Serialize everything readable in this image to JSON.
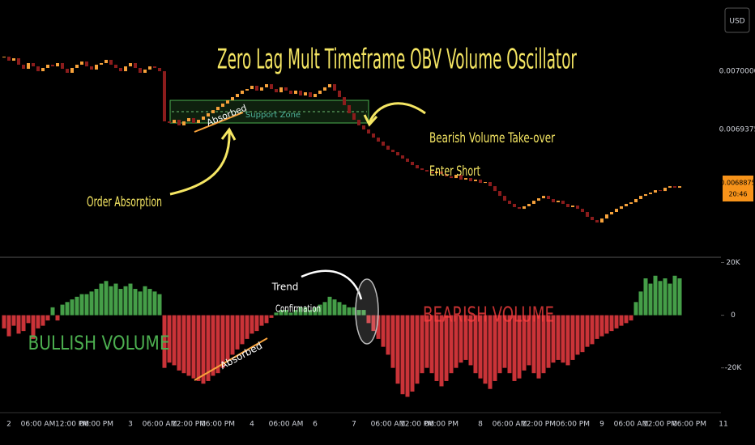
{
  "chart_data": [
    {
      "type": "candlestick",
      "title": "Zero Lag Mult Timeframe OBV Volume Oscillator",
      "currency": "USD",
      "price_label": "0.0068875",
      "time_label": "20:46",
      "annotations": {
        "order_absorption": "Order Absorption",
        "takeover": "Bearish Volume Take-over",
        "enter_short": "Enter Short",
        "absorbed": "Absorbed",
        "support_zone": "Support Zone"
      },
      "up_color": "#f7a23b",
      "down_color": "#8b1c1c",
      "grid": false,
      "ylim": [
        0.006803,
        0.0070764
      ],
      "yticks": [
        {
          "value": 0.007,
          "label": "0.0070000"
        },
        {
          "value": 0.0069375,
          "label": "0.0069375"
        }
      ],
      "values": [
        0.0070156,
        0.0070113,
        0.0070139,
        0.007007,
        0.0070026,
        0.0070087,
        0.0070052,
        0.007,
        0.0070035,
        0.007007,
        0.0070052,
        0.0070087,
        0.0070026,
        0.0069983,
        0.0070035,
        0.007007,
        0.0070104,
        0.0070052,
        0.0070018,
        0.007007,
        0.0070087,
        0.0070122,
        0.007007,
        0.0070035,
        0.007,
        0.0070052,
        0.0070087,
        0.0070035,
        0.0069983,
        0.0070018,
        0.0070052,
        0.0070035,
        0.007,
        0.0069462,
        0.0069445,
        0.0069479,
        0.0069419,
        0.0069462,
        0.0069497,
        0.0069445,
        0.0069479,
        0.0069514,
        0.0069549,
        0.0069583,
        0.0069618,
        0.0069653,
        0.0069688,
        0.0069722,
        0.0069757,
        0.0069792,
        0.0069809,
        0.0069844,
        0.0069792,
        0.0069827,
        0.0069861,
        0.0069809,
        0.0069774,
        0.0069827,
        0.0069792,
        0.0069757,
        0.0069792,
        0.006974,
        0.0069774,
        0.0069722,
        0.0069757,
        0.0069792,
        0.0069827,
        0.0069861,
        0.0069792,
        0.0069722,
        0.0069636,
        0.0069549,
        0.0069479,
        0.0069419,
        0.0069375,
        0.0069332,
        0.0069288,
        0.0069245,
        0.0069201,
        0.0069158,
        0.0069132,
        0.0069097,
        0.0069063,
        0.0069028,
        0.0068993,
        0.0068958,
        0.0068941,
        0.0068924,
        0.0068906,
        0.0068924,
        0.0068898,
        0.0068872,
        0.0068854,
        0.0068889,
        0.0068837,
        0.0068854,
        0.006882,
        0.0068837,
        0.0068802,
        0.0068811,
        0.0068767,
        0.0068715,
        0.0068663,
        0.0068611,
        0.0068577,
        0.0068542,
        0.0068524,
        0.0068551,
        0.0068577,
        0.0068611,
        0.0068637,
        0.0068663,
        0.0068629,
        0.0068594,
        0.0068611,
        0.0068577,
        0.0068542,
        0.0068559,
        0.0068524,
        0.006849,
        0.0068438,
        0.0068403,
        0.0068377,
        0.006842,
        0.0068464,
        0.006849,
        0.0068524,
        0.0068551,
        0.0068577,
        0.0068594,
        0.0068629,
        0.0068663,
        0.0068681,
        0.0068698,
        0.0068724,
        0.0068715,
        0.006875,
        0.0068767,
        0.006875,
        0.0068767,
        null,
        null,
        null,
        null,
        null,
        null,
        null,
        null,
        null,
        null
      ]
    },
    {
      "type": "bar",
      "annotations": {
        "trend": "Trend",
        "confirmation": "Confirmation",
        "bullish": "BULLISH VOLUME",
        "bearish": "BEARISH VOLUME",
        "absorbed": "Absorbed"
      },
      "positive_color": "#4caf50",
      "negative_color": "#e0393e",
      "grid": false,
      "ylim": [
        -37000,
        22000
      ],
      "yticks": [
        {
          "value": 20000,
          "label": "20K"
        },
        0,
        {
          "value": -20000,
          "label": "-20K"
        }
      ],
      "categories": [
        null,
        "2",
        null,
        null,
        null,
        null,
        null,
        "06:00 AM",
        null,
        null,
        null,
        null,
        null,
        null,
        "12:00 PM",
        null,
        null,
        null,
        null,
        "06:00 PM",
        null,
        null,
        null,
        null,
        null,
        null,
        "3",
        null,
        null,
        null,
        null,
        null,
        "06:00 AM",
        null,
        null,
        null,
        null,
        null,
        "12:00 PM",
        null,
        null,
        null,
        null,
        null,
        "06:00 PM",
        null,
        null,
        null,
        null,
        null,
        null,
        "4",
        null,
        null,
        null,
        null,
        null,
        null,
        "06:00 AM",
        null,
        null,
        null,
        null,
        null,
        "6",
        null,
        null,
        null,
        null,
        null,
        null,
        null,
        "7",
        null,
        null,
        null,
        null,
        null,
        null,
        "06:00 AM",
        null,
        null,
        null,
        null,
        null,
        "12:00 PM",
        null,
        null,
        null,
        null,
        "06:00 PM",
        null,
        null,
        null,
        null,
        null,
        null,
        null,
        "8",
        null,
        null,
        null,
        null,
        null,
        "06:00 AM",
        null,
        null,
        null,
        null,
        null,
        "12:00 PM",
        null,
        null,
        null,
        null,
        null,
        null,
        "06:00 PM",
        null,
        null,
        null,
        null,
        null,
        "9",
        null,
        null,
        null,
        null,
        null,
        "06:00 AM",
        null,
        null,
        null,
        null,
        null,
        "12:00 PM",
        null,
        null,
        null,
        null,
        null,
        "06:00 PM",
        null,
        null,
        null,
        null,
        null,
        null,
        "11",
        null
      ],
      "values": [
        -5000,
        -8000,
        -4000,
        -7000,
        -6000,
        -3000,
        -9000,
        -5000,
        -4000,
        -2000,
        3000,
        -2000,
        4000,
        5000,
        6000,
        7000,
        8000,
        8000,
        9000,
        10000,
        12000,
        13000,
        11000,
        12000,
        10000,
        11000,
        12000,
        10000,
        9000,
        11000,
        10000,
        9000,
        8000,
        -20000,
        -18000,
        -19000,
        -21000,
        -22000,
        -23000,
        -24000,
        -25000,
        -26000,
        -25000,
        -23000,
        -22000,
        -20000,
        -17000,
        -15000,
        -13000,
        -11000,
        -9000,
        -7000,
        -6000,
        -4000,
        -3000,
        -1000,
        1000,
        2000,
        2000,
        1000,
        2000,
        3000,
        3000,
        2000,
        3000,
        4000,
        5000,
        7000,
        6000,
        5000,
        4000,
        3000,
        3000,
        2000,
        2000,
        -3000,
        -6000,
        -9000,
        -12000,
        -15000,
        -20000,
        -26000,
        -30000,
        -31000,
        -29000,
        -26000,
        -22000,
        -20000,
        -22000,
        -25000,
        -27000,
        -25000,
        -22000,
        -20000,
        -18000,
        -17000,
        -19000,
        -22000,
        -24000,
        -26000,
        -28000,
        -25000,
        -22000,
        -20000,
        -22000,
        -25000,
        -24000,
        -21000,
        -19000,
        -22000,
        -24000,
        -22000,
        -20000,
        -18000,
        -17000,
        -18000,
        -19000,
        -17000,
        -15000,
        -14000,
        -12000,
        -11000,
        -9000,
        -8000,
        -7000,
        -6000,
        -5000,
        -4000,
        -3000,
        -2000,
        5000,
        9000,
        14000,
        12000,
        15000,
        13000,
        14000,
        12000,
        15000,
        14000,
        null,
        null,
        null,
        null,
        null,
        null,
        null,
        null,
        null,
        null
      ]
    }
  ]
}
